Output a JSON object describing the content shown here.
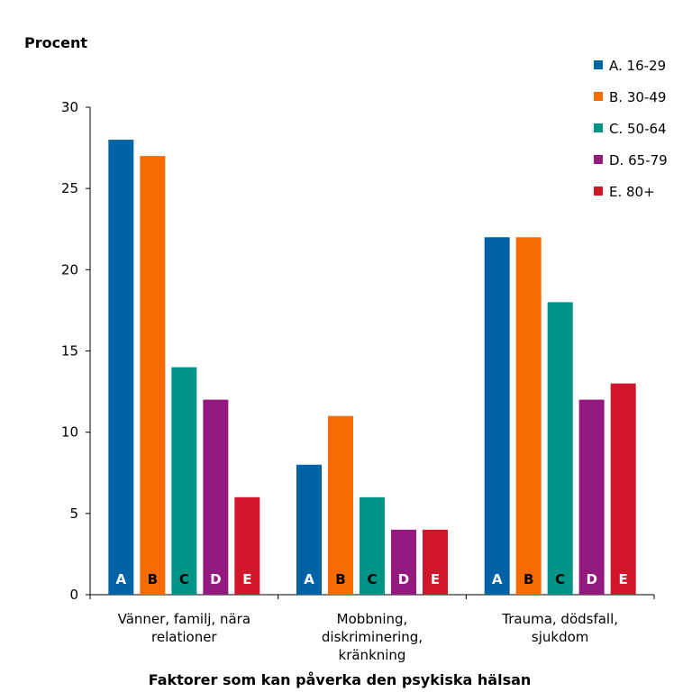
{
  "chart_data": {
    "type": "bar",
    "ylabel": "Procent",
    "xlabel": "Faktorer som kan påverka den psykiska hälsan",
    "ylim": [
      0,
      30
    ],
    "yticks": [
      "0",
      "5",
      "10",
      "15",
      "20",
      "25",
      "30"
    ],
    "categories": [
      [
        "Vänner, familj, nära",
        "relationer"
      ],
      [
        "Mobbning,",
        "diskriminering,",
        "kränkning"
      ],
      [
        "Trauma, dödsfall,",
        "sjukdom"
      ]
    ],
    "series": [
      {
        "name": "A. 16-29",
        "letter": "A",
        "color": "#0063a6",
        "letter_color": "#ffffff",
        "values": [
          28,
          8,
          22
        ]
      },
      {
        "name": "B. 30-49",
        "letter": "B",
        "color": "#f86b00",
        "letter_color": "#000000",
        "values": [
          27,
          11,
          22
        ]
      },
      {
        "name": "C. 50-64",
        "letter": "C",
        "color": "#009487",
        "letter_color": "#000000",
        "values": [
          14,
          6,
          18
        ]
      },
      {
        "name": "D. 65-79",
        "letter": "D",
        "color": "#94197e",
        "letter_color": "#ffffff",
        "values": [
          12,
          4,
          12
        ]
      },
      {
        "name": "E. 80+",
        "letter": "E",
        "color": "#d01628",
        "letter_color": "#ffffff",
        "values": [
          6,
          4,
          13
        ]
      }
    ],
    "legend_position": "top-right"
  }
}
